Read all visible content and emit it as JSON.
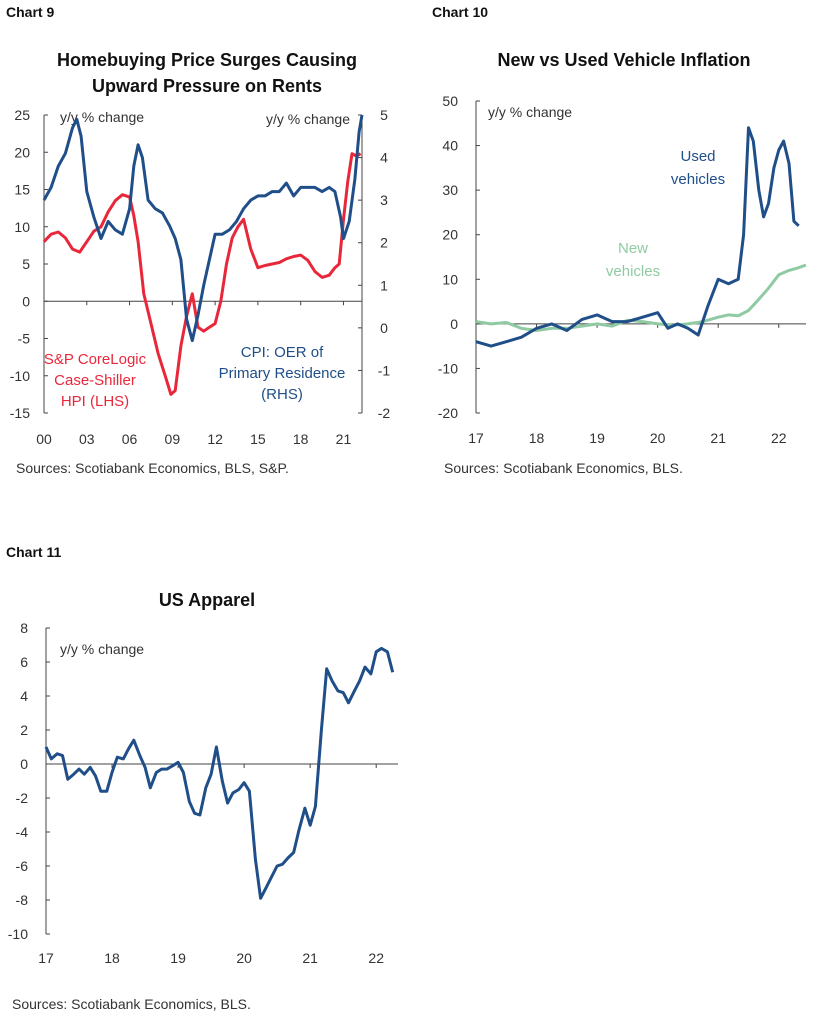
{
  "colors": {
    "navy": "#1f4e89",
    "red": "#e8283a",
    "green": "#8fcaa3",
    "axis": "#444444"
  },
  "chart_data": [
    {
      "id": "chart9",
      "label": "Chart 9",
      "type": "line",
      "title": "Homebuying Price Surges Causing Upward Pressure on Rents",
      "title_lines": [
        "Homebuying Price Surges Causing",
        "Upward Pressure on Rents"
      ],
      "ylabel_left": "y/y % change",
      "ylabel_right": "y/y % change",
      "ylim_left": [
        -15,
        25
      ],
      "yticks_left": [
        -15,
        -10,
        -5,
        0,
        5,
        10,
        15,
        20,
        25
      ],
      "ylim_right": [
        -2,
        5
      ],
      "yticks_right": [
        -2,
        -1,
        0,
        1,
        2,
        3,
        4,
        5
      ],
      "xlim": [
        2000,
        2022.3
      ],
      "xticks": [
        {
          "v": 2000,
          "label": "00"
        },
        {
          "v": 2003,
          "label": "03"
        },
        {
          "v": 2006,
          "label": "06"
        },
        {
          "v": 2009,
          "label": "09"
        },
        {
          "v": 2012,
          "label": "12"
        },
        {
          "v": 2015,
          "label": "15"
        },
        {
          "v": 2018,
          "label": "18"
        },
        {
          "v": 2021,
          "label": "21"
        }
      ],
      "series": [
        {
          "name": "S&P CoreLogic Case-Shiller HPI (LHS)",
          "axis": "left",
          "color": "red",
          "label_lines": [
            "S&P CoreLogic",
            "Case-Shiller",
            "HPI (LHS)"
          ],
          "x": [
            2000,
            2000.5,
            2001,
            2001.5,
            2002,
            2002.5,
            2003,
            2003.5,
            2004,
            2004.5,
            2005,
            2005.5,
            2006,
            2006.3,
            2006.6,
            2007,
            2007.5,
            2008,
            2008.5,
            2008.9,
            2009.2,
            2009.6,
            2010,
            2010.4,
            2010.8,
            2011.2,
            2011.6,
            2012,
            2012.4,
            2012.8,
            2013.2,
            2013.6,
            2014,
            2014.5,
            2015,
            2015.5,
            2016,
            2016.5,
            2017,
            2017.5,
            2018,
            2018.5,
            2019,
            2019.5,
            2020,
            2020.4,
            2020.7,
            2021,
            2021.3,
            2021.6,
            2021.9,
            2022.2
          ],
          "values": [
            8,
            9,
            9.3,
            8.5,
            7,
            6.6,
            8,
            9.4,
            10,
            12,
            13.5,
            14.3,
            14,
            11.5,
            8,
            1,
            -3,
            -7,
            -10,
            -12.5,
            -12,
            -6,
            -2,
            1,
            -3.5,
            -4,
            -3.5,
            -3,
            0,
            5,
            8.5,
            10,
            11,
            7,
            4.5,
            4.8,
            5,
            5.2,
            5.7,
            6,
            6.2,
            5.5,
            4,
            3.2,
            3.5,
            4.5,
            5,
            11,
            16,
            19.8,
            19.5,
            19.8
          ]
        },
        {
          "name": "CPI: OER of Primary Residence (RHS)",
          "axis": "right",
          "color": "navy",
          "label_lines": [
            "CPI: OER of",
            "Primary Residence",
            "(RHS)"
          ],
          "x": [
            2000,
            2000.5,
            2001,
            2001.5,
            2002,
            2002.3,
            2002.6,
            2003,
            2003.5,
            2004,
            2004.5,
            2005,
            2005.5,
            2006,
            2006.3,
            2006.6,
            2006.9,
            2007.3,
            2007.8,
            2008.3,
            2008.8,
            2009.2,
            2009.6,
            2010,
            2010.4,
            2010.8,
            2011.2,
            2011.6,
            2012,
            2012.5,
            2013,
            2013.5,
            2014,
            2014.5,
            2015,
            2015.5,
            2016,
            2016.5,
            2017,
            2017.5,
            2018,
            2018.5,
            2019,
            2019.5,
            2020,
            2020.4,
            2020.8,
            2021,
            2021.4,
            2021.8,
            2022.1,
            2022.3
          ],
          "values": [
            3,
            3.3,
            3.8,
            4.1,
            4.7,
            4.9,
            4.5,
            3.2,
            2.6,
            2.1,
            2.5,
            2.3,
            2.2,
            2.8,
            3.8,
            4.3,
            4.0,
            3.0,
            2.8,
            2.7,
            2.4,
            2.1,
            1.6,
            0.2,
            -0.3,
            0.3,
            1.0,
            1.6,
            2.2,
            2.2,
            2.3,
            2.5,
            2.8,
            3.0,
            3.1,
            3.1,
            3.2,
            3.2,
            3.4,
            3.1,
            3.3,
            3.3,
            3.3,
            3.2,
            3.3,
            3.2,
            2.6,
            2.1,
            2.5,
            3.5,
            4.6,
            5.0
          ]
        }
      ],
      "source": "Sources: Scotiabank Economics, BLS, S&P."
    },
    {
      "id": "chart10",
      "label": "Chart 10",
      "type": "line",
      "title": "New vs Used Vehicle Inflation",
      "ylabel": "y/y  % change",
      "ylim": [
        -20,
        50
      ],
      "yticks": [
        -20,
        -10,
        0,
        10,
        20,
        30,
        40,
        50
      ],
      "xlim": [
        2017,
        2022.45
      ],
      "xticks": [
        {
          "v": 2017,
          "label": "17"
        },
        {
          "v": 2018,
          "label": "18"
        },
        {
          "v": 2019,
          "label": "19"
        },
        {
          "v": 2020,
          "label": "20"
        },
        {
          "v": 2021,
          "label": "21"
        },
        {
          "v": 2022,
          "label": "22"
        }
      ],
      "series": [
        {
          "name": "Used vehicles",
          "color": "navy",
          "label_lines": [
            "Used",
            "vehicles"
          ],
          "x": [
            2017,
            2017.25,
            2017.5,
            2017.75,
            2018,
            2018.25,
            2018.5,
            2018.75,
            2019,
            2019.25,
            2019.5,
            2019.75,
            2020,
            2020.17,
            2020.33,
            2020.5,
            2020.67,
            2020.83,
            2021,
            2021.17,
            2021.33,
            2021.42,
            2021.5,
            2021.58,
            2021.67,
            2021.75,
            2021.83,
            2021.92,
            2022,
            2022.08,
            2022.17,
            2022.25,
            2022.33
          ],
          "values": [
            -4,
            -5,
            -4,
            -3,
            -1,
            0,
            -1.5,
            1,
            2,
            0.5,
            0.5,
            1.5,
            2.5,
            -1,
            0,
            -1,
            -2.5,
            4,
            10,
            9,
            10,
            20,
            44,
            41,
            30,
            24,
            27,
            35,
            39,
            41,
            36,
            23,
            22
          ]
        },
        {
          "name": "New vehicles",
          "color": "green",
          "label_lines": [
            "New",
            "vehicles"
          ],
          "x": [
            2017,
            2017.25,
            2017.5,
            2017.75,
            2018,
            2018.25,
            2018.5,
            2018.75,
            2019,
            2019.25,
            2019.5,
            2019.75,
            2020,
            2020.25,
            2020.5,
            2020.75,
            2021,
            2021.17,
            2021.33,
            2021.5,
            2021.67,
            2021.83,
            2022,
            2022.17,
            2022.33,
            2022.45
          ],
          "values": [
            0.5,
            0,
            0.3,
            -1,
            -1.5,
            -1,
            -1,
            -0.5,
            0,
            -0.5,
            0.8,
            0.5,
            0,
            -0.3,
            0,
            0.5,
            1.5,
            2,
            1.8,
            3,
            5.5,
            8,
            11,
            12,
            12.6,
            13.2
          ]
        }
      ],
      "source": "Sources: Scotiabank Economics, BLS."
    },
    {
      "id": "chart11",
      "label": "Chart 11",
      "type": "line",
      "title": "US Apparel",
      "ylabel": "y/y % change",
      "ylim": [
        -10,
        8
      ],
      "yticks": [
        -10,
        -8,
        -6,
        -4,
        -2,
        0,
        2,
        4,
        6,
        8
      ],
      "xlim": [
        2017,
        2022.33
      ],
      "xticks": [
        {
          "v": 2017,
          "label": "17"
        },
        {
          "v": 2018,
          "label": "18"
        },
        {
          "v": 2019,
          "label": "19"
        },
        {
          "v": 2020,
          "label": "20"
        },
        {
          "v": 2021,
          "label": "21"
        },
        {
          "v": 2022,
          "label": "22"
        }
      ],
      "series": [
        {
          "name": "US Apparel",
          "color": "navy",
          "x": [
            2017,
            2017.08,
            2017.17,
            2017.25,
            2017.33,
            2017.42,
            2017.5,
            2017.58,
            2017.67,
            2017.75,
            2017.83,
            2017.92,
            2018,
            2018.08,
            2018.17,
            2018.25,
            2018.33,
            2018.42,
            2018.5,
            2018.58,
            2018.67,
            2018.75,
            2018.83,
            2018.92,
            2019,
            2019.08,
            2019.17,
            2019.25,
            2019.33,
            2019.42,
            2019.5,
            2019.58,
            2019.67,
            2019.75,
            2019.83,
            2019.92,
            2020,
            2020.08,
            2020.17,
            2020.25,
            2020.33,
            2020.42,
            2020.5,
            2020.58,
            2020.67,
            2020.75,
            2020.83,
            2020.92,
            2021,
            2021.08,
            2021.17,
            2021.25,
            2021.33,
            2021.42,
            2021.5,
            2021.58,
            2021.67,
            2021.75,
            2021.83,
            2021.92,
            2022,
            2022.08,
            2022.17,
            2022.25
          ],
          "values": [
            1.0,
            0.3,
            0.6,
            0.5,
            -0.9,
            -0.6,
            -0.3,
            -0.6,
            -0.2,
            -0.7,
            -1.6,
            -1.6,
            -0.5,
            0.4,
            0.3,
            0.9,
            1.4,
            0.5,
            -0.2,
            -1.4,
            -0.5,
            -0.3,
            -0.3,
            -0.1,
            0.1,
            -0.5,
            -2.2,
            -2.9,
            -3.0,
            -1.4,
            -0.6,
            1.0,
            -1.0,
            -2.3,
            -1.7,
            -1.5,
            -1.1,
            -1.6,
            -5.6,
            -7.9,
            -7.3,
            -6.6,
            -6.0,
            -5.9,
            -5.5,
            -5.2,
            -3.9,
            -2.6,
            -3.6,
            -2.5,
            2.0,
            5.6,
            4.9,
            4.3,
            4.2,
            3.6,
            4.3,
            4.9,
            5.7,
            5.3,
            6.6,
            6.8,
            6.6,
            5.4
          ]
        }
      ],
      "source": "Sources: Scotiabank Economics, BLS."
    }
  ]
}
